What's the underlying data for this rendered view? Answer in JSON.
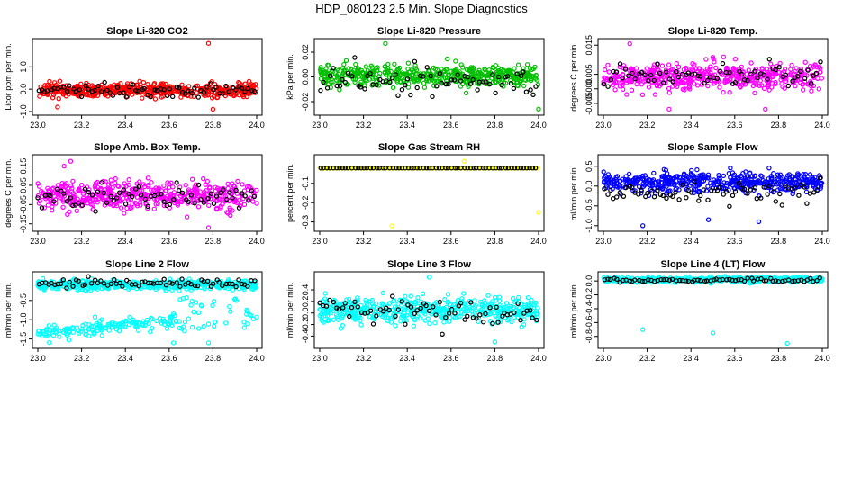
{
  "title": "HDP_080123  2.5 Min. Slope Diagnostics",
  "chart_data": [
    {
      "type": "scatter",
      "title": "Slope Li-820 CO2",
      "ylabel": "Licor ppm per min.",
      "color": "#ff0000",
      "xlim": [
        23.0,
        24.0
      ],
      "ylim": [
        -1.0,
        2.1
      ],
      "xticks": [
        {
          "v": 23.0,
          "l": "23.0"
        },
        {
          "v": 23.2,
          "l": "23.2"
        },
        {
          "v": 23.4,
          "l": "23.4"
        },
        {
          "v": 23.6,
          "l": "23.6"
        },
        {
          "v": 23.8,
          "l": "23.8"
        },
        {
          "v": 24.0,
          "l": "24.0"
        }
      ],
      "yticks": [
        {
          "v": -1.0,
          "l": "-1.0"
        },
        {
          "v": 0.0,
          "l": "0.0"
        },
        {
          "v": 1.0,
          "l": "1.0"
        }
      ],
      "main_center": -0.05,
      "main_spread": 0.25,
      "black_center": -0.05,
      "black_spread": 0.2,
      "outliers": [
        {
          "x": 23.78,
          "y": 2.05
        },
        {
          "x": 23.8,
          "y": -0.9
        },
        {
          "x": 23.09,
          "y": -0.8
        }
      ]
    },
    {
      "type": "scatter",
      "title": "Slope Li-820 Pressure",
      "ylabel": "kPa per min.",
      "color": "#00c000",
      "xlim": [
        23.0,
        24.0
      ],
      "ylim": [
        -0.028,
        0.028
      ],
      "xticks": [
        {
          "v": 23.0,
          "l": "23.0"
        },
        {
          "v": 23.2,
          "l": "23.2"
        },
        {
          "v": 23.4,
          "l": "23.4"
        },
        {
          "v": 23.6,
          "l": "23.6"
        },
        {
          "v": 23.8,
          "l": "23.8"
        },
        {
          "v": 24.0,
          "l": "24.0"
        }
      ],
      "yticks": [
        {
          "v": -0.02,
          "l": "-0.02"
        },
        {
          "v": 0.0,
          "l": "0.00"
        },
        {
          "v": 0.02,
          "l": "0.02"
        }
      ],
      "main_center": 0.001,
      "main_spread": 0.007,
      "black_center": -0.003,
      "black_spread": 0.008,
      "outliers": [
        {
          "x": 24.0,
          "y": -0.026
        },
        {
          "x": 23.3,
          "y": 0.027
        }
      ]
    },
    {
      "type": "scatter",
      "title": "Slope Li-820 Temp.",
      "ylabel": "degrees C per min.",
      "color": "#ff00ff",
      "xlim": [
        23.0,
        24.0
      ],
      "ylim": [
        -0.0078,
        0.016
      ],
      "xticks": [
        {
          "v": 23.0,
          "l": "23.0"
        },
        {
          "v": 23.2,
          "l": "23.2"
        },
        {
          "v": 23.4,
          "l": "23.4"
        },
        {
          "v": 23.6,
          "l": "23.6"
        },
        {
          "v": 23.8,
          "l": "23.8"
        },
        {
          "v": 24.0,
          "l": "24.0"
        }
      ],
      "yticks": [
        {
          "v": -0.005,
          "l": "-0.005"
        },
        {
          "v": 0.0,
          "l": "0.000"
        },
        {
          "v": 0.005,
          "l": "0.005"
        },
        {
          "v": 0.015,
          "l": "0.015"
        }
      ],
      "main_center": 0.004,
      "main_spread": 0.004,
      "black_center": 0.004,
      "black_spread": 0.003,
      "outliers": [
        {
          "x": 23.12,
          "y": 0.0155
        },
        {
          "x": 23.3,
          "y": -0.007
        },
        {
          "x": 23.74,
          "y": -0.007
        }
      ]
    },
    {
      "type": "scatter",
      "title": "Slope Amb. Box Temp.",
      "ylabel": "degrees C per min.",
      "color": "#ff00ff",
      "xlim": [
        23.0,
        24.0
      ],
      "ylim": [
        -0.17,
        0.19
      ],
      "xticks": [
        {
          "v": 23.0,
          "l": "23.0"
        },
        {
          "v": 23.2,
          "l": "23.2"
        },
        {
          "v": 23.4,
          "l": "23.4"
        },
        {
          "v": 23.6,
          "l": "23.6"
        },
        {
          "v": 23.8,
          "l": "23.8"
        },
        {
          "v": 24.0,
          "l": "24.0"
        }
      ],
      "yticks": [
        {
          "v": -0.15,
          "l": "-0.15"
        },
        {
          "v": -0.05,
          "l": "-0.05"
        },
        {
          "v": 0.05,
          "l": "0.05"
        },
        {
          "v": 0.15,
          "l": "0.15"
        }
      ],
      "main_center": 0.0,
      "main_spread": 0.06,
      "black_center": 0.0,
      "black_spread": 0.05,
      "outliers": [
        {
          "x": 23.15,
          "y": 0.175
        },
        {
          "x": 23.78,
          "y": -0.17
        },
        {
          "x": 23.12,
          "y": 0.15
        }
      ]
    },
    {
      "type": "scatter",
      "title": "Slope Gas Stream RH",
      "ylabel": "percent per min.",
      "color": "#ffff00",
      "xlim": [
        23.0,
        24.0
      ],
      "ylim": [
        -0.33,
        0.03
      ],
      "xticks": [
        {
          "v": 23.0,
          "l": "23.0"
        },
        {
          "v": 23.2,
          "l": "23.2"
        },
        {
          "v": 23.4,
          "l": "23.4"
        },
        {
          "v": 23.6,
          "l": "23.6"
        },
        {
          "v": 23.8,
          "l": "23.8"
        },
        {
          "v": 24.0,
          "l": "24.0"
        }
      ],
      "yticks": [
        {
          "v": -0.1,
          "l": "-0.1"
        },
        {
          "v": -0.2,
          "l": "-0.2"
        },
        {
          "v": -0.3,
          "l": "-0.3"
        }
      ],
      "main_center": -0.02,
      "main_spread": 0.0,
      "black_center": -0.02,
      "black_spread": 0.0,
      "outliers": [
        {
          "x": 23.66,
          "y": 0.015
        },
        {
          "x": 24.0,
          "y": -0.25
        },
        {
          "x": 23.33,
          "y": -0.32
        }
      ]
    },
    {
      "type": "scatter",
      "title": "Slope Sample Flow",
      "ylabel": "ml/min per min.",
      "color": "#0000ff",
      "xlim": [
        23.0,
        24.0
      ],
      "ylim": [
        -1.05,
        0.7
      ],
      "xticks": [
        {
          "v": 23.0,
          "l": "23.0"
        },
        {
          "v": 23.2,
          "l": "23.2"
        },
        {
          "v": 23.4,
          "l": "23.4"
        },
        {
          "v": 23.6,
          "l": "23.6"
        },
        {
          "v": 23.8,
          "l": "23.8"
        },
        {
          "v": 24.0,
          "l": "24.0"
        }
      ],
      "yticks": [
        {
          "v": -1.0,
          "l": "-1.0"
        },
        {
          "v": -0.5,
          "l": "-0.5"
        },
        {
          "v": 0.0,
          "l": "0.0"
        },
        {
          "v": 0.5,
          "l": "0.5"
        }
      ],
      "main_center": 0.1,
      "main_spread": 0.2,
      "black_center": -0.15,
      "black_spread": 0.2,
      "outliers": [
        {
          "x": 23.18,
          "y": -1.0
        },
        {
          "x": 23.48,
          "y": -0.85
        },
        {
          "x": 23.71,
          "y": -0.9
        }
      ]
    },
    {
      "type": "scatter",
      "title": "Slope Line 2 Flow",
      "ylabel": "ml/min per min.",
      "color": "#00ffff",
      "xlim": [
        23.0,
        24.0
      ],
      "ylim": [
        -1.65,
        0.15
      ],
      "xticks": [
        {
          "v": 23.0,
          "l": "23.0"
        },
        {
          "v": 23.2,
          "l": "23.2"
        },
        {
          "v": 23.4,
          "l": "23.4"
        },
        {
          "v": 23.6,
          "l": "23.6"
        },
        {
          "v": 23.8,
          "l": "23.8"
        },
        {
          "v": 24.0,
          "l": "24.0"
        }
      ],
      "yticks": [
        {
          "v": -0.5,
          "l": "-0.5"
        },
        {
          "v": -1.0,
          "l": "-1.0"
        },
        {
          "v": -1.5,
          "l": "-1.5"
        }
      ],
      "main_center": -0.1,
      "main_spread": 0.1,
      "black_center": -0.05,
      "black_spread": 0.08,
      "lower_band": {
        "x_from": 23.0,
        "x_to": 23.65,
        "y_start": -1.35,
        "y_end": -1.0,
        "spread": 0.15
      },
      "outliers": [
        {
          "x": 23.78,
          "y": -1.6
        },
        {
          "x": 23.62,
          "y": -1.6
        }
      ]
    },
    {
      "type": "scatter",
      "title": "Slope Line 3 Flow",
      "ylabel": "ml/min per min.",
      "color": "#00ffff",
      "xlim": [
        23.0,
        24.0
      ],
      "ylim": [
        -0.55,
        0.65
      ],
      "xticks": [
        {
          "v": 23.0,
          "l": "23.0"
        },
        {
          "v": 23.2,
          "l": "23.2"
        },
        {
          "v": 23.4,
          "l": "23.4"
        },
        {
          "v": 23.6,
          "l": "23.6"
        },
        {
          "v": 23.8,
          "l": "23.8"
        },
        {
          "v": 24.0,
          "l": "24.0"
        }
      ],
      "yticks": [
        {
          "v": -0.4,
          "l": "-0.4"
        },
        {
          "v": -0.2,
          "l": "-0.2"
        },
        {
          "v": 0.0,
          "l": "0.0"
        },
        {
          "v": 0.2,
          "l": "0.2"
        },
        {
          "v": 0.4,
          "l": "0.4"
        }
      ],
      "main_center": 0.05,
      "main_spread": 0.18,
      "black_center": 0.0,
      "black_spread": 0.15,
      "outliers": [
        {
          "x": 23.5,
          "y": 0.62
        },
        {
          "x": 23.8,
          "y": -0.5
        }
      ]
    },
    {
      "type": "scatter",
      "title": "Slope Line 4 (LT) Flow",
      "ylabel": "ml/min per min.",
      "color": "#00ffff",
      "xlim": [
        23.0,
        24.0
      ],
      "ylim": [
        -0.92,
        0.08
      ],
      "xticks": [
        {
          "v": 23.0,
          "l": "23.0"
        },
        {
          "v": 23.2,
          "l": "23.2"
        },
        {
          "v": 23.4,
          "l": "23.4"
        },
        {
          "v": 23.6,
          "l": "23.6"
        },
        {
          "v": 23.8,
          "l": "23.8"
        },
        {
          "v": 24.0,
          "l": "24.0"
        }
      ],
      "yticks": [
        {
          "v": 0.0,
          "l": "0.0"
        },
        {
          "v": -0.2,
          "l": "-0.2"
        },
        {
          "v": -0.4,
          "l": "-0.4"
        },
        {
          "v": -0.6,
          "l": "-0.6"
        },
        {
          "v": -0.8,
          "l": "-0.8"
        }
      ],
      "main_center": 0.02,
      "main_spread": 0.03,
      "black_center": 0.01,
      "black_spread": 0.02,
      "outliers": [
        {
          "x": 23.18,
          "y": -0.7
        },
        {
          "x": 23.5,
          "y": -0.75
        },
        {
          "x": 23.84,
          "y": -0.9
        }
      ]
    }
  ]
}
